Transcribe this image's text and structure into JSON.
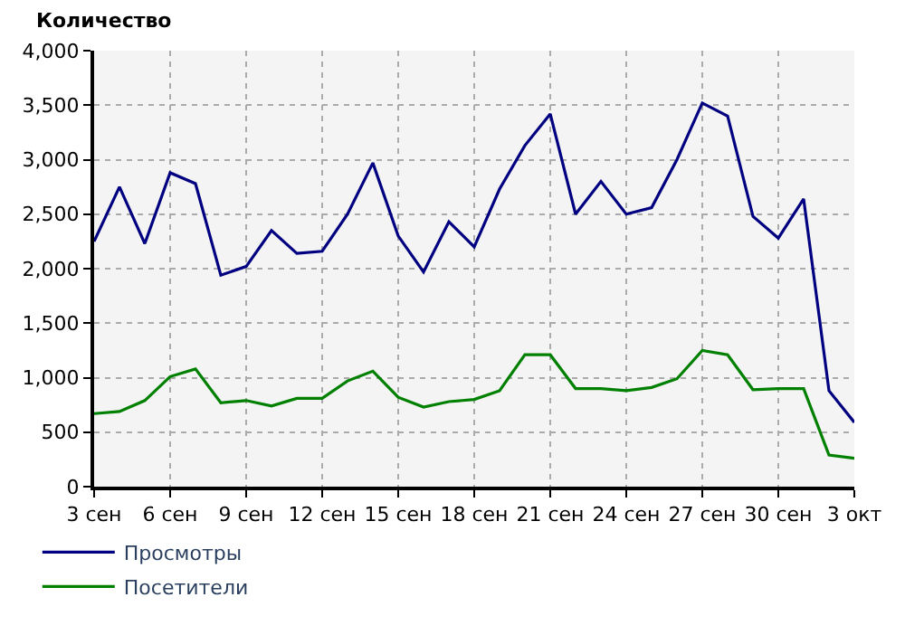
{
  "chart_data": {
    "type": "line",
    "ylabel": "Количество",
    "categories": [
      "3 сен",
      null,
      null,
      "6 сен",
      null,
      null,
      "9 сен",
      null,
      null,
      "12 сен",
      null,
      null,
      "15 сен",
      null,
      null,
      "18 сен",
      null,
      null,
      "21 сен",
      null,
      null,
      "24 сен",
      null,
      null,
      "27 сен",
      null,
      null,
      "30 сен",
      null,
      null,
      "3 окт"
    ],
    "series": [
      {
        "name": "Просмотры",
        "color": "#000080",
        "values": [
          2250,
          2750,
          2230,
          2880,
          2780,
          1940,
          2020,
          2350,
          2140,
          2160,
          2500,
          2970,
          2300,
          1970,
          2430,
          2200,
          2730,
          3130,
          3420,
          2500,
          2800,
          2500,
          2560,
          3000,
          3520,
          3400,
          2480,
          2280,
          2640,
          880,
          590
        ]
      },
      {
        "name": "Посетители",
        "color": "#008000",
        "values": [
          670,
          690,
          790,
          1010,
          1080,
          770,
          790,
          740,
          810,
          810,
          970,
          1060,
          820,
          730,
          780,
          800,
          880,
          1210,
          1210,
          900,
          900,
          880,
          910,
          990,
          1250,
          1210,
          890,
          900,
          900,
          290,
          260
        ]
      }
    ],
    "ylim": [
      0,
      4000
    ],
    "yticks": [
      0,
      500,
      {
        "value": 1000,
        "label": "1,000"
      },
      {
        "value": 1500,
        "label": "1,500"
      },
      {
        "value": 2000,
        "label": "2,000"
      },
      {
        "value": 2500,
        "label": "2,500"
      },
      {
        "value": 3000,
        "label": "3,000"
      },
      {
        "value": 3500,
        "label": "3,500"
      },
      {
        "value": 4000,
        "label": "4,000"
      }
    ],
    "grid": true,
    "legend": "bottom left",
    "line_style": "solid",
    "marker": "none"
  }
}
